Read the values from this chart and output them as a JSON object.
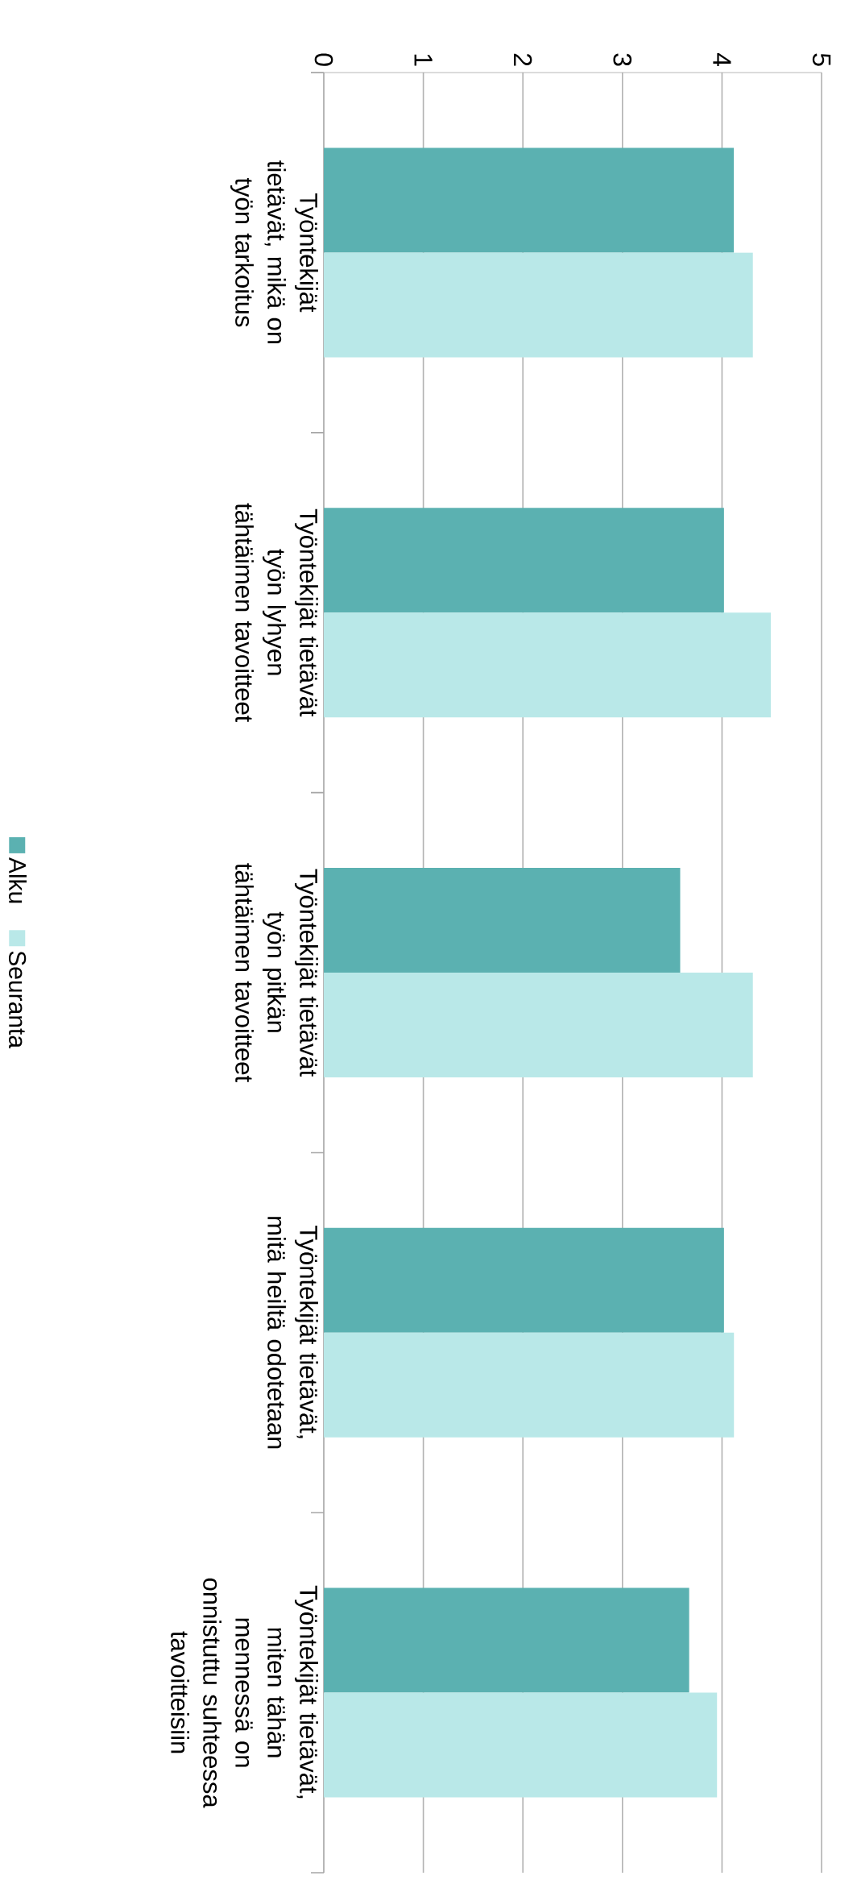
{
  "chart_data": {
    "type": "bar",
    "orientation": "horizontal",
    "categories": [
      "Työntekijät tietävät, mikä on työn tarkoitus",
      "Työntekijät tietävät työn lyhyen tähtäimen tavoitteet",
      "Työntekijät tietävät työn pitkän tähtäimen tavoitteet",
      "Työntekijät tietävät, mitä heiltä odotetaan",
      "Työntekijät tietävät, miten tähän mennessä on onnistuttu suhteessa tavoitteisiin"
    ],
    "series": [
      {
        "name": "Alku",
        "color": "#5bb1b1",
        "values": [
          4.12,
          4.02,
          3.58,
          4.02,
          3.67
        ]
      },
      {
        "name": "Seuranta",
        "color": "#b9e8e8",
        "values": [
          4.31,
          4.49,
          4.31,
          4.12,
          3.95
        ]
      }
    ],
    "xlim": [
      0,
      5
    ],
    "xticks": [
      0,
      1,
      2,
      3,
      4,
      5
    ],
    "grid": "x",
    "legend": "left"
  }
}
